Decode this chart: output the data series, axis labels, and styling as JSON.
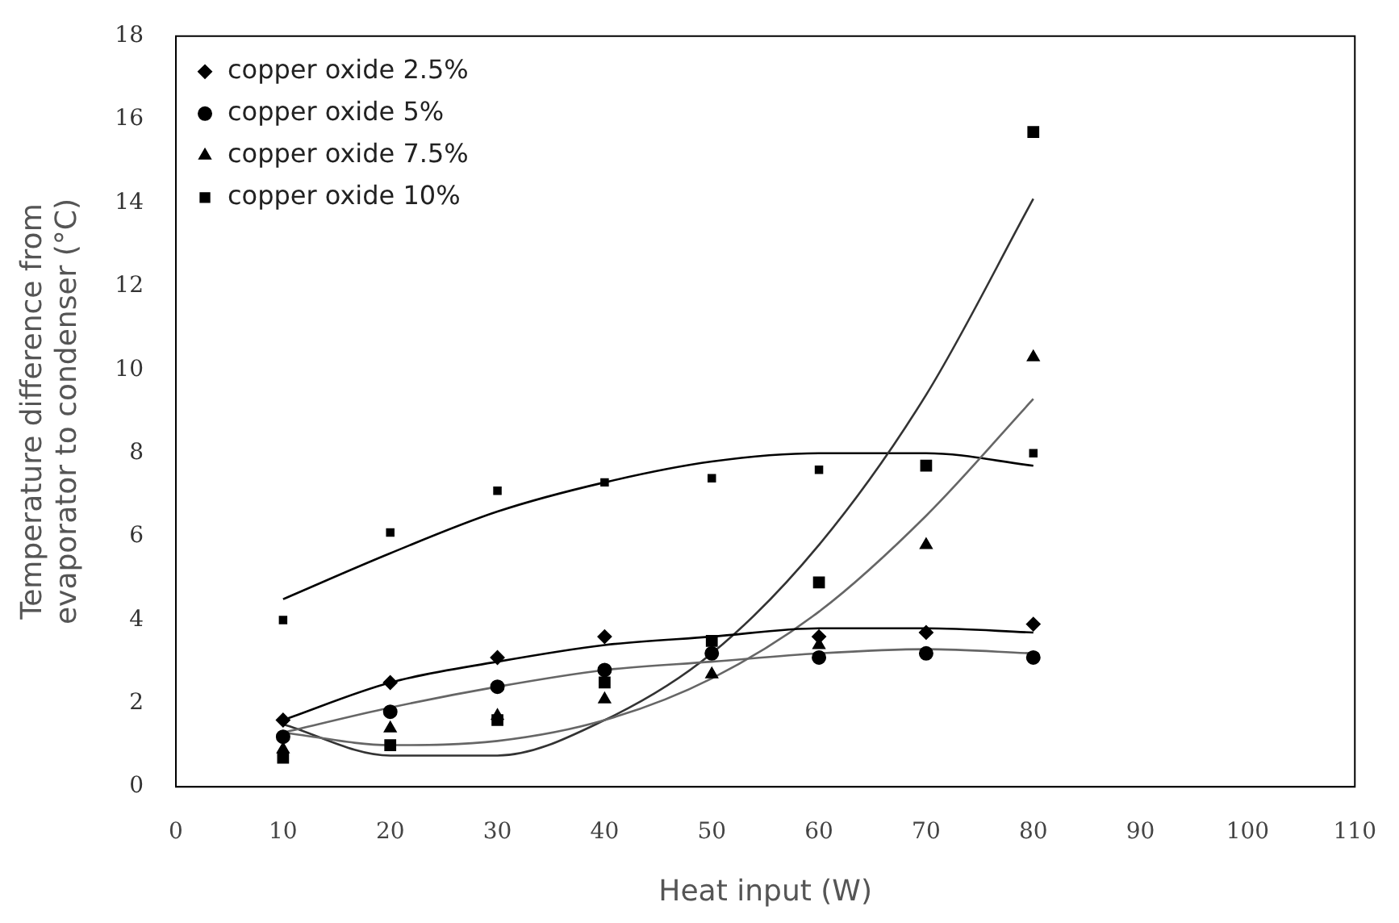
{
  "chart_data": {
    "type": "scatter",
    "xlabel": "Heat input (W)",
    "ylabel": "Temperature difference from\nevaporator to condenser (°C)",
    "xlim": [
      0,
      110
    ],
    "xticks": [
      0,
      10,
      20,
      30,
      40,
      50,
      60,
      70,
      80,
      90,
      100,
      110
    ],
    "ylim": [
      0,
      18
    ],
    "yticks": [
      0,
      2,
      4,
      6,
      8,
      10,
      12,
      14,
      16,
      18
    ],
    "grid": false,
    "legend": "top left",
    "series": [
      {
        "name": "copper oxide 2.5%",
        "color": "#000000",
        "marker": "diamond",
        "x": [
          10,
          20,
          30,
          40,
          50,
          60,
          70,
          80
        ],
        "values": [
          1.6,
          2.5,
          3.1,
          3.6,
          null,
          3.6,
          3.7,
          3.9
        ]
      },
      {
        "name": "copper oxide 5%",
        "color": "#000000",
        "marker": "circle",
        "x": [
          10,
          20,
          30,
          40,
          50,
          60,
          70,
          80
        ],
        "values": [
          1.2,
          1.8,
          2.4,
          2.8,
          3.2,
          3.1,
          3.2,
          3.1
        ]
      },
      {
        "name": "copper oxide 7.5%",
        "color": "#000000",
        "marker": "triangle",
        "x": [
          10,
          20,
          30,
          40,
          50,
          60,
          70,
          80
        ],
        "values": [
          0.9,
          1.4,
          1.7,
          2.1,
          2.7,
          3.4,
          5.8,
          10.3
        ]
      },
      {
        "name": "copper oxide 10%",
        "color": "#000000",
        "marker": "square",
        "x": [
          10,
          20,
          30,
          40,
          50,
          60,
          70,
          80
        ],
        "values": [
          0.7,
          1.0,
          1.6,
          2.5,
          3.5,
          4.9,
          7.7,
          15.7
        ]
      },
      {
        "color": "#000000",
        "marker": "square",
        "x": [
          10,
          20,
          30,
          40,
          50,
          60,
          70,
          80
        ],
        "values": [
          4.0,
          6.1,
          7.1,
          7.3,
          7.4,
          7.6,
          null,
          8.0
        ]
      },
      {
        "type": "line",
        "color": "#000000",
        "marker": "none",
        "x": [
          10,
          20,
          30,
          40,
          50,
          60,
          70,
          80
        ],
        "values": [
          1.6,
          2.5,
          3.0,
          3.4,
          3.6,
          3.8,
          3.8,
          3.7
        ]
      },
      {
        "type": "line",
        "color": "#666666",
        "marker": "none",
        "x": [
          10,
          20,
          30,
          40,
          50,
          60,
          70,
          80
        ],
        "values": [
          1.3,
          1.9,
          2.4,
          2.8,
          3.0,
          3.2,
          3.3,
          3.2
        ]
      },
      {
        "type": "line",
        "color": "#666666",
        "marker": "none",
        "x": [
          10,
          20,
          30,
          40,
          50,
          60,
          70,
          80
        ],
        "values": [
          1.3,
          1.0,
          1.1,
          1.6,
          2.6,
          4.2,
          6.5,
          9.3
        ]
      },
      {
        "type": "line",
        "color": "#333333",
        "marker": "none",
        "x": [
          10,
          20,
          30,
          40,
          50,
          60,
          70,
          80
        ],
        "values": [
          1.5,
          0.75,
          0.75,
          1.6,
          3.2,
          5.8,
          9.4,
          14.1
        ]
      },
      {
        "type": "line",
        "color": "#000000",
        "marker": "none",
        "x": [
          10,
          20,
          30,
          40,
          50,
          60,
          70,
          80
        ],
        "values": [
          4.5,
          5.6,
          6.6,
          7.3,
          7.8,
          8.0,
          8.0,
          7.7
        ]
      }
    ]
  }
}
